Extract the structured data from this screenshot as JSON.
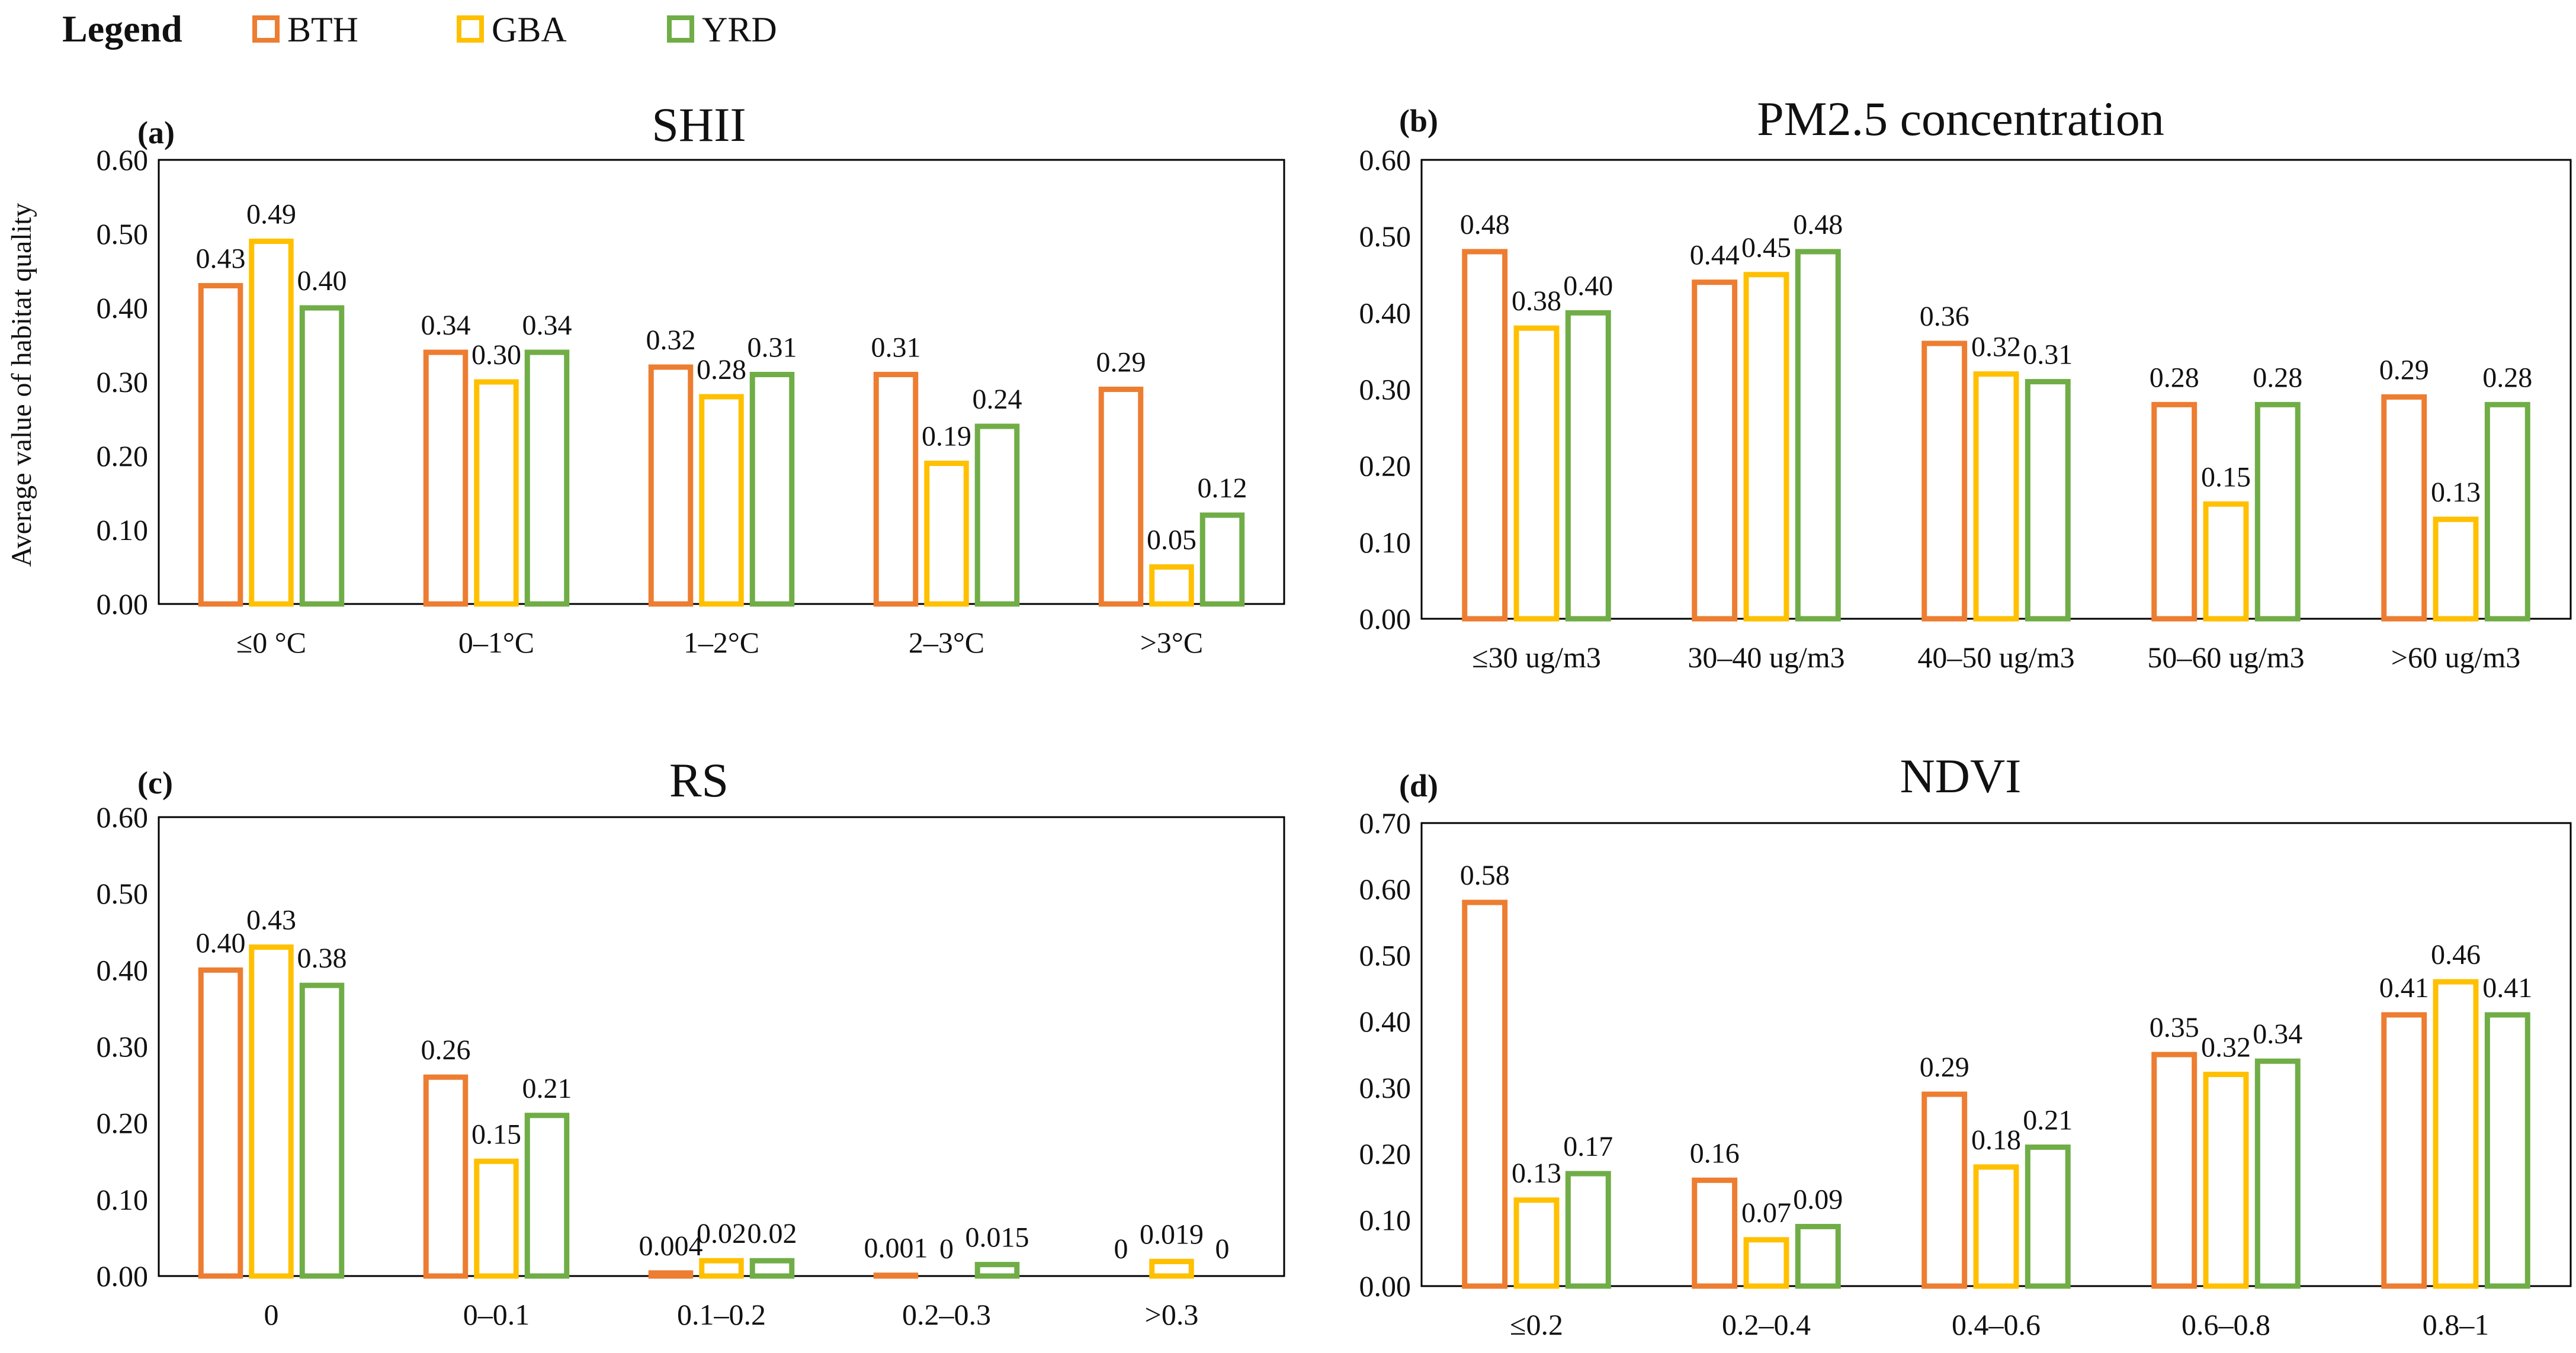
{
  "legend": {
    "title": "Legend",
    "entries": [
      {
        "name": "BTH",
        "color": "#ED7D31"
      },
      {
        "name": "GBA",
        "color": "#FFC000"
      },
      {
        "name": "YRD",
        "color": "#70AD47"
      }
    ]
  },
  "chart_data": [
    {
      "type": "bar",
      "panel": "(a)",
      "title": "SHII",
      "ylabel": "Average value of habitat quality",
      "xlabel": "",
      "ylim": [
        0,
        0.6
      ],
      "yticks": [
        "0.00",
        "0.10",
        "0.20",
        "0.30",
        "0.40",
        "0.50",
        "0.60"
      ],
      "categories": [
        "≤0 °C",
        "0–1°C",
        "1–2°C",
        "2–3°C",
        ">3°C"
      ],
      "series": [
        {
          "name": "BTH",
          "values": [
            0.43,
            0.34,
            0.32,
            0.31,
            0.29
          ],
          "labels": [
            "0.43",
            "0.34",
            "0.32",
            "0.31",
            "0.29"
          ]
        },
        {
          "name": "GBA",
          "values": [
            0.49,
            0.3,
            0.28,
            0.19,
            0.05
          ],
          "labels": [
            "0.49",
            "0.30",
            "0.28",
            "0.19",
            "0.05"
          ]
        },
        {
          "name": "YRD",
          "values": [
            0.4,
            0.34,
            0.31,
            0.24,
            0.12
          ],
          "labels": [
            "0.40",
            "0.34",
            "0.31",
            "0.24",
            "0.12"
          ]
        }
      ]
    },
    {
      "type": "bar",
      "panel": "(b)",
      "title": "PM2.5 concentration",
      "ylabel": "",
      "xlabel": "",
      "ylim": [
        0,
        0.6
      ],
      "yticks": [
        "0.00",
        "0.10",
        "0.20",
        "0.30",
        "0.40",
        "0.50",
        "0.60"
      ],
      "categories": [
        "≤30 ug/m3",
        "30–40 ug/m3",
        "40–50 ug/m3",
        "50–60 ug/m3",
        ">60 ug/m3"
      ],
      "series": [
        {
          "name": "BTH",
          "values": [
            0.48,
            0.44,
            0.36,
            0.28,
            0.29
          ],
          "labels": [
            "0.48",
            "0.44",
            "0.36",
            "0.28",
            "0.29"
          ]
        },
        {
          "name": "GBA",
          "values": [
            0.38,
            0.45,
            0.32,
            0.15,
            0.13
          ],
          "labels": [
            "0.38",
            "0.45",
            "0.32",
            "0.15",
            "0.13"
          ]
        },
        {
          "name": "YRD",
          "values": [
            0.4,
            0.48,
            0.31,
            0.28,
            0.28
          ],
          "labels": [
            "0.40",
            "0.48",
            "0.31",
            "0.28",
            "0.28"
          ]
        }
      ]
    },
    {
      "type": "bar",
      "panel": "(c)",
      "title": "RS",
      "ylabel": "",
      "xlabel": "",
      "ylim": [
        0,
        0.6
      ],
      "yticks": [
        "0.00",
        "0.10",
        "0.20",
        "0.30",
        "0.40",
        "0.50",
        "0.60"
      ],
      "categories": [
        "0",
        "0–0.1",
        "0.1–0.2",
        "0.2–0.3",
        ">0.3"
      ],
      "series": [
        {
          "name": "BTH",
          "values": [
            0.4,
            0.26,
            0.004,
            0.001,
            0
          ],
          "labels": [
            "0.40",
            "0.26",
            "0.004",
            "0.001",
            "0"
          ]
        },
        {
          "name": "GBA",
          "values": [
            0.43,
            0.15,
            0.02,
            0,
            0.019
          ],
          "labels": [
            "0.43",
            "0.15",
            "0.02",
            "0",
            "0.019"
          ]
        },
        {
          "name": "YRD",
          "values": [
            0.38,
            0.21,
            0.02,
            0.015,
            0
          ],
          "labels": [
            "0.38",
            "0.21",
            "0.02",
            "0.015",
            "0"
          ]
        }
      ]
    },
    {
      "type": "bar",
      "panel": "(d)",
      "title": "NDVI",
      "ylabel": "",
      "xlabel": "",
      "ylim": [
        0,
        0.7
      ],
      "yticks": [
        "0.00",
        "0.10",
        "0.20",
        "0.30",
        "0.40",
        "0.50",
        "0.60",
        "0.70"
      ],
      "categories": [
        "≤0.2",
        "0.2–0.4",
        "0.4–0.6",
        "0.6–0.8",
        "0.8–1"
      ],
      "series": [
        {
          "name": "BTH",
          "values": [
            0.58,
            0.16,
            0.29,
            0.35,
            0.41
          ],
          "labels": [
            "0.58",
            "0.16",
            "0.29",
            "0.35",
            "0.41"
          ]
        },
        {
          "name": "GBA",
          "values": [
            0.13,
            0.07,
            0.18,
            0.32,
            0.46
          ],
          "labels": [
            "0.13",
            "0.07",
            "0.18",
            "0.32",
            "0.46"
          ]
        },
        {
          "name": "YRD",
          "values": [
            0.17,
            0.09,
            0.21,
            0.34,
            0.41
          ],
          "labels": [
            "0.17",
            "0.09",
            "0.21",
            "0.34",
            "0.41"
          ]
        }
      ]
    }
  ]
}
